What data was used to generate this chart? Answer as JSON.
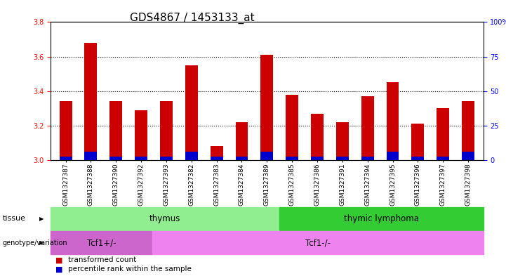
{
  "title": "GDS4867 / 1453133_at",
  "samples": [
    "GSM1327387",
    "GSM1327388",
    "GSM1327390",
    "GSM1327392",
    "GSM1327393",
    "GSM1327382",
    "GSM1327383",
    "GSM1327384",
    "GSM1327389",
    "GSM1327385",
    "GSM1327386",
    "GSM1327391",
    "GSM1327394",
    "GSM1327395",
    "GSM1327396",
    "GSM1327397",
    "GSM1327398"
  ],
  "red_values": [
    3.34,
    3.68,
    3.34,
    3.29,
    3.34,
    3.55,
    3.08,
    3.22,
    3.61,
    3.38,
    3.27,
    3.22,
    3.37,
    3.45,
    3.21,
    3.3,
    3.34
  ],
  "blue_values": [
    3.02,
    3.05,
    3.02,
    3.02,
    3.02,
    3.05,
    3.02,
    3.02,
    3.05,
    3.02,
    3.02,
    3.02,
    3.02,
    3.05,
    3.02,
    3.02,
    3.05
  ],
  "ymin": 3.0,
  "ymax": 3.8,
  "y_ticks_left": [
    3.0,
    3.2,
    3.4,
    3.6,
    3.8
  ],
  "y_ticks_right": [
    0,
    25,
    50,
    75,
    100
  ],
  "tissue_groups": [
    {
      "label": "thymus",
      "start": 0,
      "end": 8,
      "color": "#90EE90"
    },
    {
      "label": "thymic lymphoma",
      "start": 9,
      "end": 16,
      "color": "#33CC33"
    }
  ],
  "genotype_groups": [
    {
      "label": "Tcf1+/-",
      "start": 0,
      "end": 3,
      "color": "#CC66CC"
    },
    {
      "label": "Tcf1-/-",
      "start": 4,
      "end": 16,
      "color": "#EE82EE"
    }
  ],
  "bar_color": "#CC0000",
  "blue_color": "#0000CC",
  "plot_bg": "#FFFFFF",
  "xtick_bg": "#DDDDDD",
  "title_fontsize": 11,
  "tick_fontsize": 7,
  "label_fontsize": 8
}
